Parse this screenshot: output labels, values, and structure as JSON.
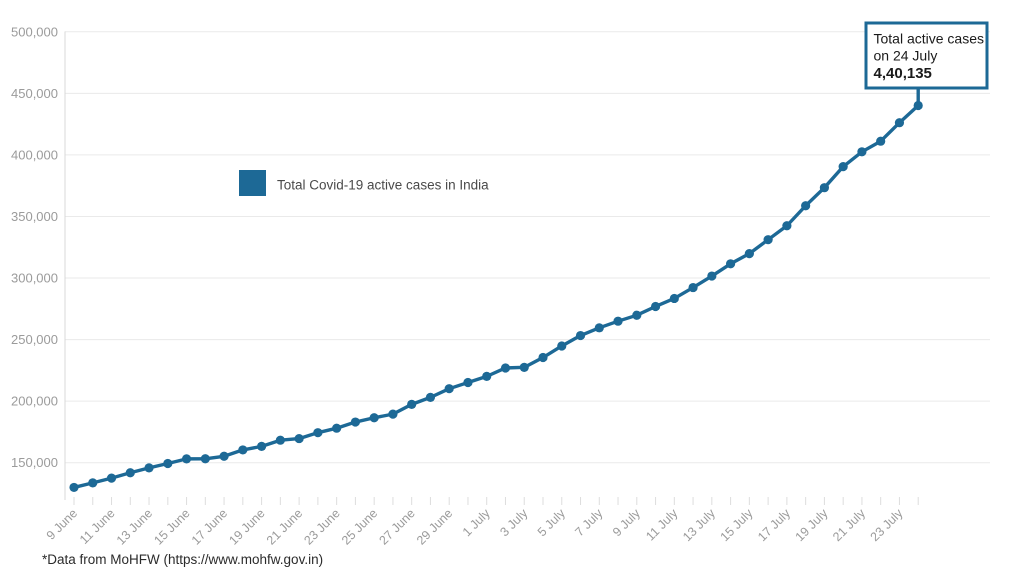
{
  "chart_data": {
    "type": "line",
    "title": "",
    "legend": "Total Covid-19 active cases in India",
    "xlabel": "",
    "ylabel": "",
    "categories": [
      "9 June",
      "10 June",
      "11 June",
      "12 June",
      "13 June",
      "14 June",
      "15 June",
      "16 June",
      "17 June",
      "18 June",
      "19 June",
      "20 June",
      "21 June",
      "22 June",
      "23 June",
      "24 June",
      "25 June",
      "26 June",
      "27 June",
      "28 June",
      "29 June",
      "30 June",
      "1 July",
      "2 July",
      "3 July",
      "4 July",
      "5 July",
      "6 July",
      "7 July",
      "8 July",
      "9 July",
      "10 July",
      "11 July",
      "12 July",
      "13 July",
      "14 July",
      "15 July",
      "16 July",
      "17 July",
      "18 July",
      "19 July",
      "20 July",
      "21 July",
      "22 July",
      "23 July",
      "24 July"
    ],
    "values": [
      129917,
      133632,
      137448,
      141842,
      145779,
      149348,
      153106,
      153178,
      155227,
      160384,
      163248,
      168269,
      169597,
      174387,
      178014,
      183022,
      186514,
      189463,
      197387,
      203051,
      210120,
      215125,
      220114,
      226947,
      227439,
      235433,
      244814,
      253287,
      259557,
      264944,
      269789,
      276882,
      283407,
      292258,
      301609,
      311565,
      319840,
      331146,
      342473,
      358692,
      373379,
      390459,
      402529,
      411133,
      426167,
      440135
    ],
    "x_tick_label_every": 2,
    "y_tick_values": [
      150000,
      200000,
      250000,
      300000,
      350000,
      400000,
      450000,
      500000
    ],
    "y_tick_labels": [
      "150,000",
      "200,000",
      "250,000",
      "300,000",
      "350,000",
      "400,000",
      "450,000",
      "500,000"
    ],
    "grid": "horizontal",
    "legend_position": "inside-left-upper"
  },
  "annotation": {
    "line1": "Total active cases",
    "line2": "on 24 July",
    "value": "4,40,135"
  },
  "footnote": "*Data from MoHFW (https://www.mohfw.gov.in)",
  "colors": {
    "line": "#1d6996",
    "grid": "#eaeaea",
    "axis_line": "#d8d8d8",
    "tick": "#dddddd",
    "axis_text": "#9b9b9b",
    "legend_text": "#4a4a4a",
    "annotation_text": "#1a1a1a",
    "annotation_bg": "#ffffff"
  }
}
